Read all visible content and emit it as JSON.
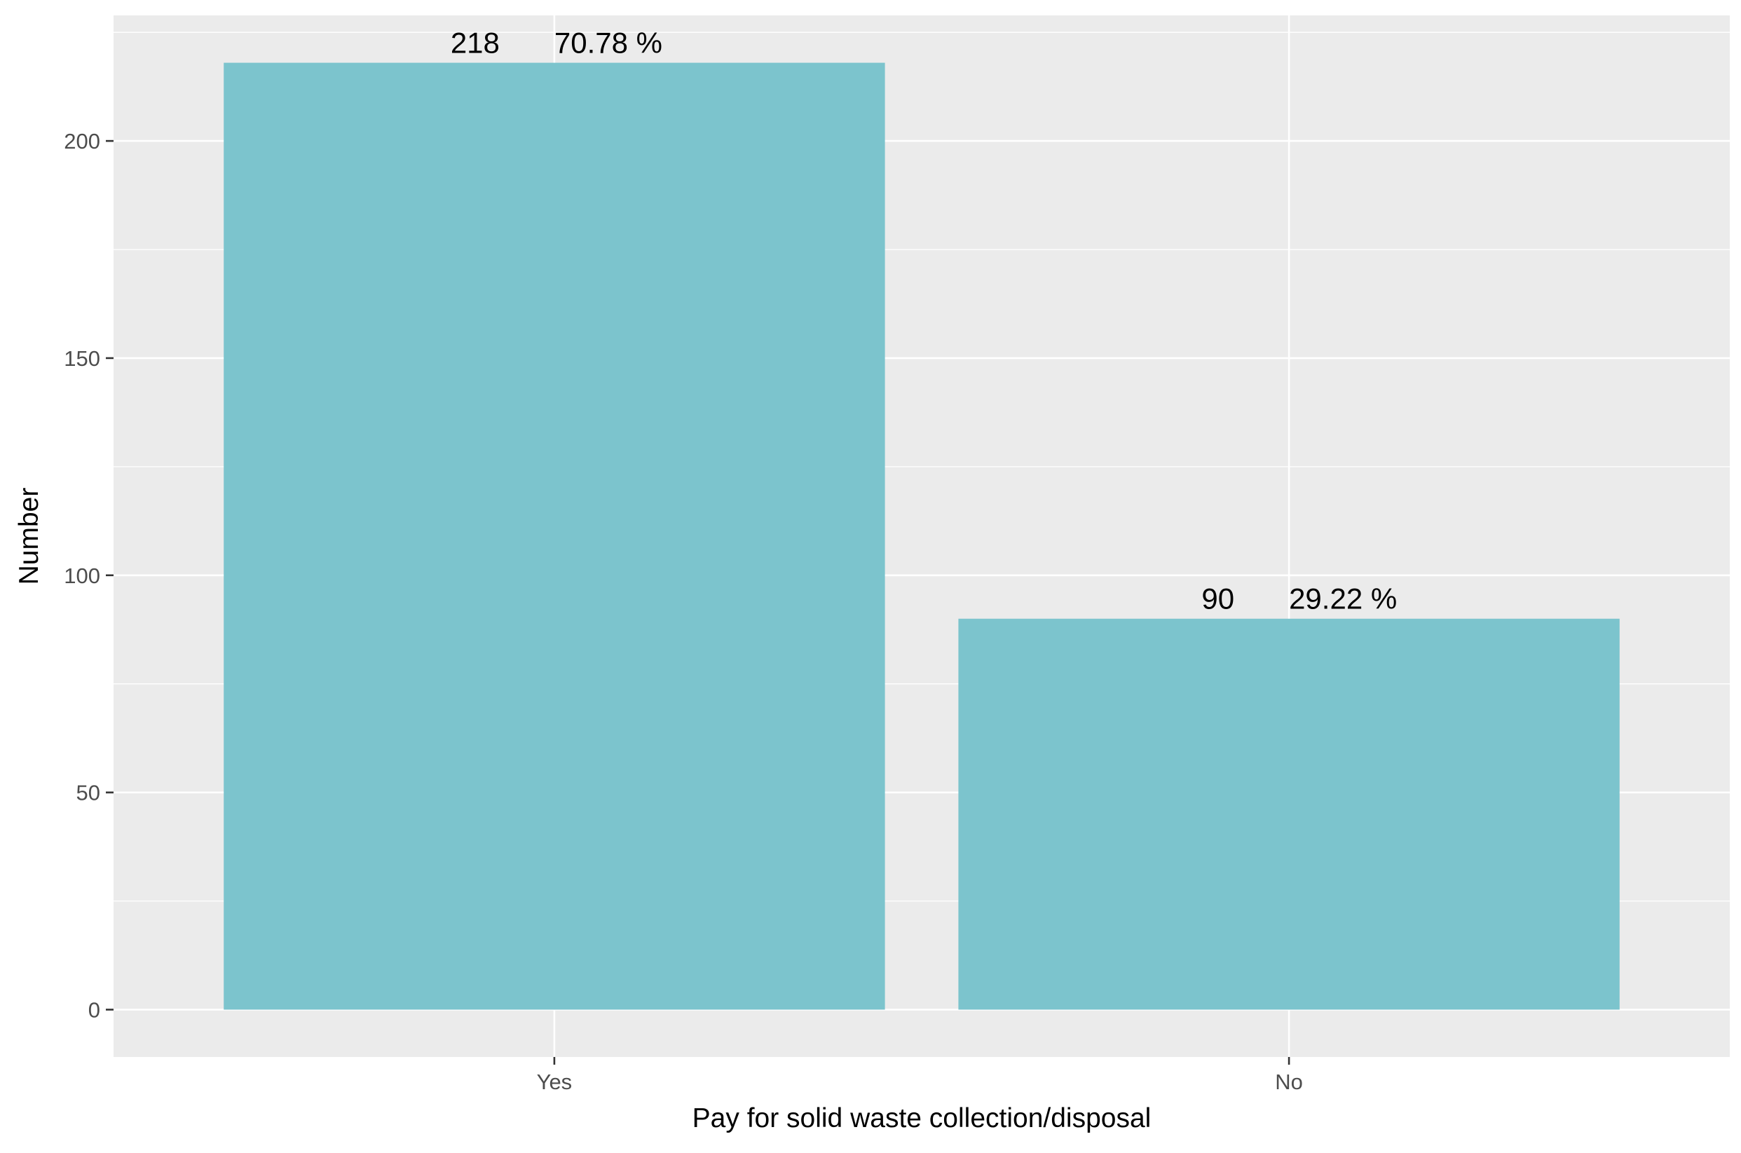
{
  "chart_data": {
    "type": "bar",
    "title": "",
    "xlabel": "Pay for solid waste collection/disposal",
    "ylabel": "Number",
    "categories": [
      "Yes",
      "No"
    ],
    "values": [
      218,
      90
    ],
    "data_labels": [
      {
        "count": "218",
        "percent": "70.78 %"
      },
      {
        "count": "90",
        "percent": "29.22 %"
      }
    ],
    "ylim": [
      -10.9,
      228.9
    ],
    "y_ticks": [
      0,
      50,
      100,
      150,
      200
    ],
    "y_minor_ticks": [
      25,
      75,
      125,
      175,
      225
    ],
    "grid": true,
    "legend": "none",
    "colors": {
      "bar": "#7cc4cd",
      "panel": "#ebebeb",
      "grid": "#ffffff",
      "axis_text": "#4d4d4d",
      "axis_title": "#000000",
      "tick": "#333333"
    }
  }
}
